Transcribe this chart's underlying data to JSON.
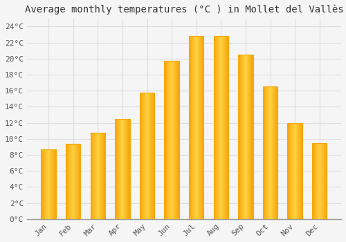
{
  "months": [
    "Jan",
    "Feb",
    "Mar",
    "Apr",
    "May",
    "Jun",
    "Jul",
    "Aug",
    "Sep",
    "Oct",
    "Nov",
    "Dec"
  ],
  "values": [
    8.7,
    9.4,
    10.8,
    12.5,
    15.8,
    19.7,
    22.8,
    22.8,
    20.5,
    16.5,
    12.0,
    9.5
  ],
  "bar_color_center": "#FFD060",
  "bar_color_edge": "#F5A800",
  "title": "Average monthly temperatures (°C ) in Mollet del Vallès",
  "ylim": [
    0,
    25
  ],
  "ytick_step": 2,
  "background_color": "#f5f5f5",
  "plot_bg_color": "#f5f5f5",
  "grid_color": "#dddddd",
  "title_fontsize": 10,
  "tick_fontsize": 8,
  "font_family": "monospace",
  "bar_width": 0.6
}
